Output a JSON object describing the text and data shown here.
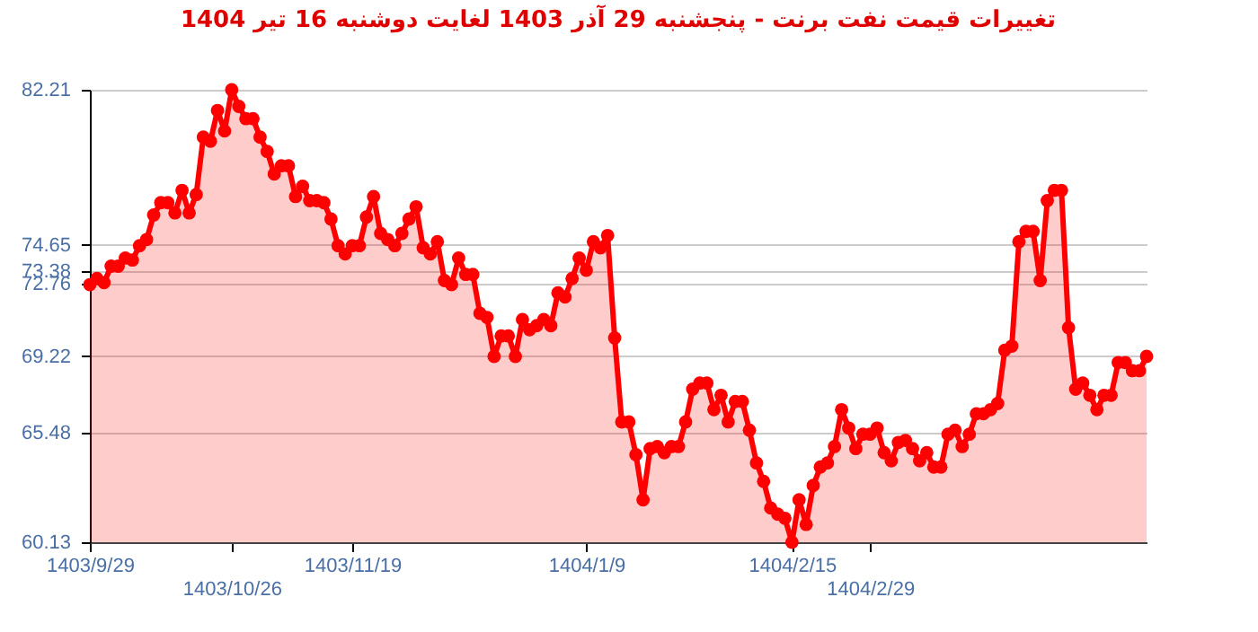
{
  "chart_data": {
    "type": "area",
    "title": "تغییرات قیمت نفت برنت - پنجشنبه  29 آذر 1403 لغایت  دوشنبه  16 تیر 1404",
    "categories": [
      "1403/9/29",
      null,
      null,
      null,
      null,
      null,
      null,
      null,
      null,
      null,
      null,
      null,
      null,
      null,
      null,
      null,
      null,
      null,
      null,
      null,
      "1403/10/26",
      null,
      null,
      null,
      null,
      null,
      null,
      null,
      null,
      null,
      null,
      null,
      null,
      null,
      null,
      null,
      null,
      "1403/11/19",
      null,
      null,
      null,
      null,
      null,
      null,
      null,
      null,
      null,
      null,
      null,
      null,
      null,
      null,
      null,
      null,
      null,
      null,
      null,
      null,
      null,
      null,
      null,
      null,
      null,
      null,
      null,
      null,
      null,
      null,
      null,
      null,
      "1404/1/9",
      null,
      null,
      null,
      null,
      null,
      null,
      null,
      null,
      null,
      null,
      null,
      null,
      null,
      null,
      null,
      null,
      null,
      null,
      null,
      null,
      null,
      null,
      null,
      null,
      null,
      null,
      null,
      null,
      "1404/2/15",
      null,
      null,
      null,
      null,
      null,
      null,
      null,
      null,
      null,
      null,
      "1404/2/29",
      null,
      null,
      null,
      null,
      null,
      null,
      null,
      null,
      null,
      null,
      null,
      null,
      null,
      null,
      null,
      null,
      null,
      null,
      null,
      null,
      null,
      null,
      null,
      null,
      null,
      null,
      null,
      null,
      null,
      null,
      null,
      null,
      null,
      null,
      null,
      null,
      null,
      null,
      null
    ],
    "series": [
      {
        "color": "#ff0000",
        "values": [
          72.7,
          73.0,
          72.8,
          73.6,
          73.6,
          74.0,
          73.9,
          74.6,
          74.9,
          76.1,
          76.7,
          76.7,
          76.2,
          77.3,
          76.2,
          77.1,
          79.9,
          79.7,
          81.2,
          80.2,
          82.21,
          81.4,
          80.8,
          80.8,
          79.9,
          79.2,
          78.1,
          78.5,
          78.5,
          77.0,
          77.5,
          76.8,
          76.8,
          76.7,
          75.9,
          74.6,
          74.2,
          74.6,
          74.6,
          76.0,
          77.0,
          75.2,
          74.9,
          74.6,
          75.2,
          75.9,
          76.5,
          74.5,
          74.2,
          74.8,
          72.9,
          72.7,
          74.0,
          73.2,
          73.2,
          71.3,
          71.1,
          69.2,
          70.2,
          70.2,
          69.2,
          71.0,
          70.5,
          70.7,
          71.0,
          70.7,
          72.3,
          72.1,
          73.0,
          74.0,
          73.4,
          74.8,
          74.5,
          75.1,
          70.1,
          66.0,
          66.0,
          64.4,
          62.2,
          64.7,
          64.8,
          64.5,
          64.8,
          64.8,
          66.0,
          67.6,
          67.9,
          67.9,
          66.6,
          67.3,
          66.0,
          67.0,
          67.0,
          65.6,
          64.0,
          63.1,
          61.8,
          61.5,
          61.3,
          60.13,
          62.2,
          61.0,
          62.9,
          63.8,
          64.0,
          64.8,
          66.6,
          65.7,
          64.7,
          65.4,
          65.4,
          65.7,
          64.5,
          64.1,
          65.0,
          65.1,
          64.7,
          64.1,
          64.5,
          63.8,
          63.8,
          65.4,
          65.6,
          64.8,
          65.4,
          66.4,
          66.4,
          66.6,
          66.9,
          69.5,
          69.7,
          74.8,
          75.3,
          75.3,
          72.9,
          76.8,
          77.3,
          77.3,
          70.6,
          67.6,
          67.9,
          67.3,
          66.6,
          67.3,
          67.3,
          68.9,
          68.9,
          68.5,
          68.5,
          69.2
        ]
      }
    ],
    "ylim": [
      60.13,
      82.21
    ],
    "yticks": [
      60.13,
      65.48,
      69.22,
      72.76,
      73.38,
      74.65,
      82.21
    ],
    "grid": "y",
    "marker": "circle"
  }
}
